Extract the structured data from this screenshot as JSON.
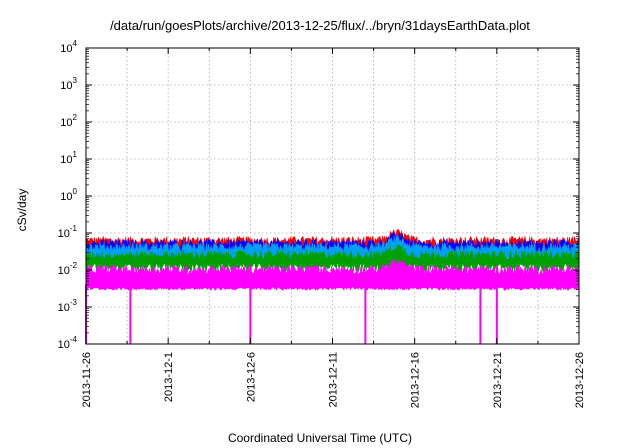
{
  "chart_data": {
    "type": "line",
    "title": "/data/run/goesPlots/archive/2013-12-25/flux/../bryn/31daysEarthData.plot",
    "xlabel": "Coordinated Universal Time (UTC)",
    "ylabel": "cSv/day",
    "yscale": "log",
    "ylim": [
      0.0001,
      10000
    ],
    "xlim": [
      "2013-11-26",
      "2013-12-26"
    ],
    "grid": true,
    "y_ticks": [
      {
        "base": "10",
        "exp": "-4"
      },
      {
        "base": "10",
        "exp": "-3"
      },
      {
        "base": "10",
        "exp": "-2"
      },
      {
        "base": "10",
        "exp": "-1"
      },
      {
        "base": "10",
        "exp": "0"
      },
      {
        "base": "10",
        "exp": "1"
      },
      {
        "base": "10",
        "exp": "2"
      },
      {
        "base": "10",
        "exp": "3"
      },
      {
        "base": "10",
        "exp": "4"
      }
    ],
    "x_ticks": [
      "2013-11-26",
      "2013-12-1",
      "2013-12-6",
      "2013-12-11",
      "2013-12-16",
      "2013-12-21",
      "2013-12-26"
    ],
    "series": [
      {
        "color": "#ff0000",
        "values_approx": {
          "typical": 0.06,
          "range": [
            0.04,
            0.1
          ]
        }
      },
      {
        "color": "#0000ff",
        "values_approx": {
          "typical": 0.05,
          "range": [
            0.03,
            0.07
          ]
        }
      },
      {
        "color": "#00a0ff",
        "values_approx": {
          "typical": 0.04,
          "range": [
            0.02,
            0.06
          ]
        }
      },
      {
        "color": "#00a000",
        "values_approx": {
          "typical": 0.025,
          "range": [
            0.015,
            0.04
          ]
        }
      },
      {
        "color": "#ff00ff",
        "values_approx": {
          "typical": 0.01,
          "range": [
            0.003,
            0.03
          ]
        }
      }
    ],
    "dropouts_to_min": [
      "2013-11-26",
      "2013-11-28.7",
      "2013-12-6",
      "2013-12-13",
      "2013-12-20",
      "2013-12-21"
    ]
  }
}
